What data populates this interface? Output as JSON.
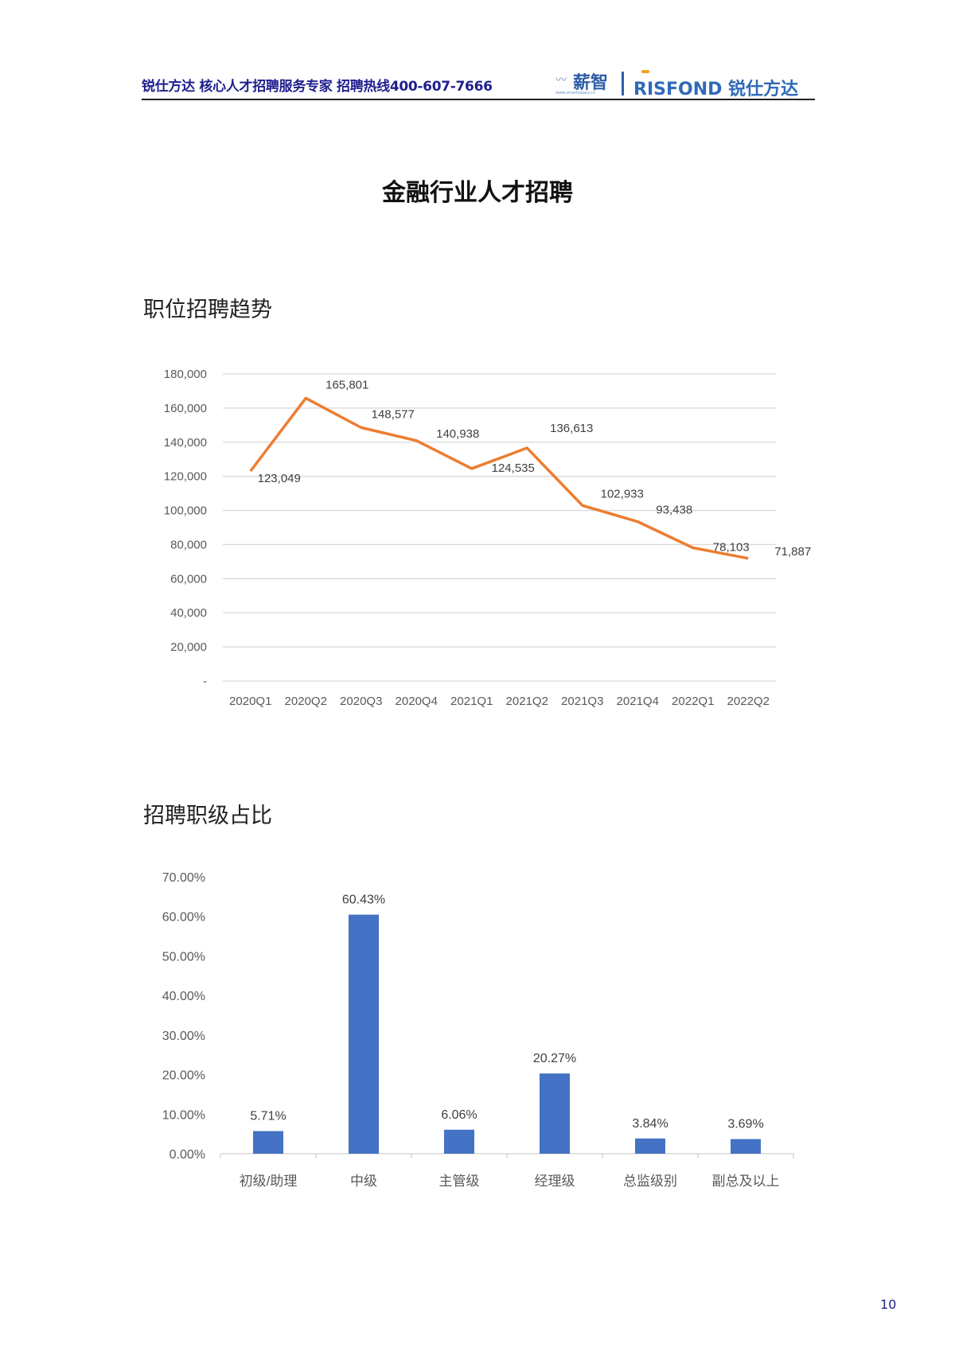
{
  "header": {
    "text": "锐仕方达  核心人才招聘服务专家  招聘热线400-607-7666",
    "logo_xinzhi": "薪智",
    "logo_xinzhi_url": "www.smartsalary.cn",
    "logo_risfond": "RISFOND 锐仕方达"
  },
  "page_title": "金融行业人才招聘",
  "sections": {
    "trend_title": "职位招聘趋势",
    "level_title": "招聘职级占比"
  },
  "page_number": "10",
  "colors": {
    "line": "#ed7d31",
    "bar": "#4472c4",
    "grid": "#d9d9d9",
    "axis_text": "#595959"
  },
  "chart_data": [
    {
      "type": "line",
      "title": "职位招聘趋势",
      "categories": [
        "2020Q1",
        "2020Q2",
        "2020Q3",
        "2020Q4",
        "2021Q1",
        "2021Q2",
        "2021Q3",
        "2021Q4",
        "2022Q1",
        "2022Q2"
      ],
      "values": [
        123049,
        165801,
        148577,
        140938,
        124535,
        136613,
        102933,
        93438,
        78103,
        71887
      ],
      "labels": [
        "123,049",
        "165,801",
        "148,577",
        "140,938",
        "124,535",
        "136,613",
        "102,933",
        "93,438",
        "78,103",
        "71,887"
      ],
      "yticks": [
        "-",
        "20,000",
        "40,000",
        "60,000",
        "80,000",
        "100,000",
        "120,000",
        "140,000",
        "160,000",
        "180,000"
      ],
      "ylim": [
        0,
        180000
      ],
      "grid": true,
      "xlabel": "",
      "ylabel": ""
    },
    {
      "type": "bar",
      "title": "招聘职级占比",
      "categories": [
        "初级/助理",
        "中级",
        "主管级",
        "经理级",
        "总监级别",
        "副总及以上"
      ],
      "values": [
        5.71,
        60.43,
        6.06,
        20.27,
        3.84,
        3.69
      ],
      "labels": [
        "5.71%",
        "60.43%",
        "6.06%",
        "20.27%",
        "3.84%",
        "3.69%"
      ],
      "yticks": [
        "0.00%",
        "10.00%",
        "20.00%",
        "30.00%",
        "40.00%",
        "50.00%",
        "60.00%",
        "70.00%"
      ],
      "ylim": [
        0,
        70
      ],
      "grid": false,
      "xlabel": "",
      "ylabel": ""
    }
  ]
}
